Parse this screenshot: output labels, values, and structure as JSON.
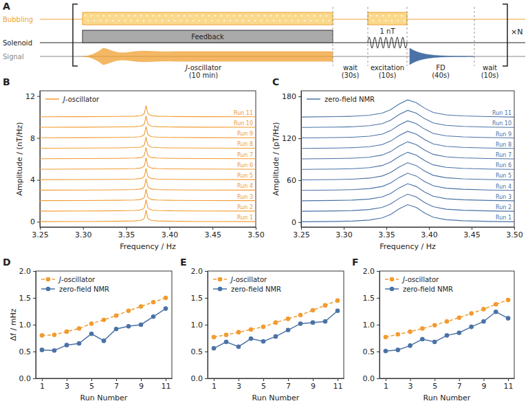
{
  "diagram": {
    "panel": "A",
    "rows": [
      "Bubbling",
      "Solenoid",
      "Signal"
    ],
    "feedback": "Feedback",
    "amplitude": "1 nT",
    "repeat": "×N",
    "phases": [
      {
        "name": "J-oscillator",
        "duration": "(10 min)"
      },
      {
        "name": "wait",
        "duration": "(30s)"
      },
      {
        "name": "excitation",
        "duration": "(10s)"
      },
      {
        "name": "FD",
        "duration": "(40s)"
      },
      {
        "name": "wait",
        "duration": "(10s)"
      }
    ]
  },
  "chart_data": [
    {
      "type": "line",
      "panel": "B",
      "xlabel": "Frequency / Hz",
      "ylabel": "Amplitude / (nT/Hz)",
      "legend_text": "J-oscillator",
      "legend": "upper left",
      "color": "#f29b30",
      "line_style": "solid",
      "marker": "none",
      "xlim": [
        3.25,
        3.5
      ],
      "ylim": [
        -0.5,
        12.5
      ],
      "xticks": [
        3.25,
        {
          "value": 3.3,
          "label": "3.30"
        },
        3.35,
        {
          "value": 3.4,
          "label": "3.40"
        },
        3.45,
        {
          "value": 3.5,
          "label": "3.50"
        }
      ],
      "yticks": [
        0,
        4,
        8,
        12
      ],
      "x": [
        3.25,
        3.3,
        3.34,
        3.36,
        3.366,
        3.369,
        3.371,
        3.372,
        3.373,
        3.374,
        3.375,
        3.377,
        3.38,
        3.386,
        3.4,
        3.44,
        3.5
      ],
      "series": [
        {
          "name": "Run 1",
          "values": [
            0.02,
            0.03,
            0.05,
            0.08,
            0.12,
            0.2,
            0.35,
            0.7,
            1.1,
            0.7,
            0.35,
            0.2,
            0.12,
            0.08,
            0.05,
            0.03,
            0.02
          ]
        },
        {
          "name": "Run 2",
          "values": [
            1.02,
            1.03,
            1.05,
            1.08,
            1.12,
            1.2,
            1.35,
            1.7,
            2.1,
            1.7,
            1.35,
            1.2,
            1.12,
            1.08,
            1.05,
            1.03,
            1.02
          ]
        },
        {
          "name": "Run 3",
          "values": [
            2.02,
            2.03,
            2.05,
            2.08,
            2.12,
            2.2,
            2.35,
            2.7,
            3.1,
            2.7,
            2.35,
            2.2,
            2.12,
            2.08,
            2.05,
            2.03,
            2.02
          ]
        },
        {
          "name": "Run 4",
          "values": [
            3.02,
            3.03,
            3.05,
            3.08,
            3.12,
            3.2,
            3.35,
            3.7,
            4.1,
            3.7,
            3.35,
            3.2,
            3.12,
            3.08,
            3.05,
            3.03,
            3.02
          ]
        },
        {
          "name": "Run 5",
          "values": [
            4.02,
            4.03,
            4.05,
            4.08,
            4.12,
            4.2,
            4.35,
            4.7,
            5.1,
            4.7,
            4.35,
            4.2,
            4.12,
            4.08,
            4.05,
            4.03,
            4.02
          ]
        },
        {
          "name": "Run 6",
          "values": [
            5.02,
            5.03,
            5.05,
            5.08,
            5.12,
            5.2,
            5.35,
            5.7,
            6.1,
            5.7,
            5.35,
            5.2,
            5.12,
            5.08,
            5.05,
            5.03,
            5.02
          ]
        },
        {
          "name": "Run 7",
          "values": [
            6.02,
            6.03,
            6.05,
            6.08,
            6.12,
            6.2,
            6.35,
            6.7,
            7.1,
            6.7,
            6.35,
            6.2,
            6.12,
            6.08,
            6.05,
            6.03,
            6.02
          ]
        },
        {
          "name": "Run 8",
          "values": [
            7.02,
            7.03,
            7.05,
            7.08,
            7.12,
            7.2,
            7.35,
            7.7,
            8.1,
            7.7,
            7.35,
            7.2,
            7.12,
            7.08,
            7.05,
            7.03,
            7.02
          ]
        },
        {
          "name": "Run 9",
          "values": [
            8.02,
            8.03,
            8.05,
            8.08,
            8.12,
            8.2,
            8.35,
            8.7,
            9.1,
            8.7,
            8.35,
            8.2,
            8.12,
            8.08,
            8.05,
            8.03,
            8.02
          ]
        },
        {
          "name": "Run 10",
          "values": [
            9.02,
            9.03,
            9.05,
            9.08,
            9.12,
            9.2,
            9.35,
            9.7,
            10.1,
            9.7,
            9.35,
            9.2,
            9.12,
            9.08,
            9.05,
            9.03,
            9.02
          ]
        },
        {
          "name": "Run 11",
          "values": [
            10.02,
            10.03,
            10.05,
            10.08,
            10.12,
            10.2,
            10.35,
            10.7,
            11.1,
            10.7,
            10.35,
            10.2,
            10.12,
            10.08,
            10.05,
            10.03,
            10.02
          ]
        }
      ]
    },
    {
      "type": "line",
      "panel": "C",
      "xlabel": "Frequency / Hz",
      "ylabel": "Amplitude / (pT/Hz)",
      "legend_text": "zero-field NMR",
      "legend": "upper left",
      "color": "#4a72a6",
      "line_style": "solid",
      "marker": "none",
      "xlim": [
        3.25,
        3.5
      ],
      "ylim": [
        -7,
        188
      ],
      "xticks": [
        3.25,
        {
          "value": 3.3,
          "label": "3.30"
        },
        3.35,
        {
          "value": 3.4,
          "label": "3.40"
        },
        3.45,
        {
          "value": 3.5,
          "label": "3.50"
        }
      ],
      "yticks": [
        0,
        60,
        120,
        180
      ],
      "x": [
        3.25,
        3.29,
        3.31,
        3.33,
        3.345,
        3.355,
        3.365,
        3.375,
        3.385,
        3.395,
        3.405,
        3.42,
        3.44,
        3.47,
        3.5
      ],
      "series": [
        {
          "name": "Run 1",
          "values": [
            0.5,
            1,
            1.5,
            3,
            6,
            11,
            19,
            25,
            21,
            13,
            7,
            3.5,
            2,
            1,
            0.5
          ]
        },
        {
          "name": "Run 2",
          "values": [
            15.5,
            16,
            16.5,
            18,
            21,
            26,
            34,
            40,
            36,
            28,
            22,
            18.5,
            17,
            16,
            15.5
          ]
        },
        {
          "name": "Run 3",
          "values": [
            30.5,
            31,
            31.5,
            33,
            36,
            41,
            49,
            55,
            51,
            43,
            37,
            33.5,
            32,
            31,
            30.5
          ]
        },
        {
          "name": "Run 4",
          "values": [
            45.5,
            46,
            46.5,
            48,
            51,
            56,
            64,
            70,
            66,
            58,
            52,
            48.5,
            47,
            46,
            45.5
          ]
        },
        {
          "name": "Run 5",
          "values": [
            60.5,
            61,
            61.5,
            63,
            66,
            71,
            79,
            85,
            81,
            73,
            67,
            63.5,
            62,
            61,
            60.5
          ]
        },
        {
          "name": "Run 6",
          "values": [
            75.5,
            76,
            76.5,
            78,
            81,
            86,
            94,
            100,
            96,
            88,
            82,
            78.5,
            77,
            76,
            75.5
          ]
        },
        {
          "name": "Run 7",
          "values": [
            90.5,
            91,
            91.5,
            93,
            96,
            101,
            109,
            115,
            111,
            103,
            97,
            93.5,
            92,
            91,
            90.5
          ]
        },
        {
          "name": "Run 8",
          "values": [
            105.5,
            106,
            106.5,
            108,
            111,
            116,
            124,
            130,
            126,
            118,
            112,
            108.5,
            107,
            106,
            105.5
          ]
        },
        {
          "name": "Run 9",
          "values": [
            120.5,
            121,
            121.5,
            123,
            126,
            131,
            139,
            145,
            141,
            133,
            127,
            123.5,
            122,
            121,
            120.5
          ]
        },
        {
          "name": "Run 10",
          "values": [
            135.5,
            136,
            136.5,
            138,
            141,
            146,
            154,
            160,
            156,
            148,
            142,
            138.5,
            137,
            136,
            135.5
          ]
        },
        {
          "name": "Run 11",
          "values": [
            150.5,
            151,
            151.5,
            153,
            156,
            161,
            169,
            175,
            171,
            163,
            157,
            153.5,
            152,
            151,
            150.5
          ]
        }
      ]
    },
    {
      "type": "line",
      "panel": "D",
      "xlabel": "Run Number",
      "ylabel": "Δf / mHz",
      "legend": "upper left",
      "xlim": [
        0.5,
        11.5
      ],
      "ylim": [
        0,
        2
      ],
      "xticks": [
        1,
        3,
        5,
        7,
        9,
        11
      ],
      "yticks": [
        {
          "value": 0,
          "label": "0.0"
        },
        0.5,
        {
          "value": 1,
          "label": "1.0"
        },
        1.5,
        {
          "value": 2,
          "label": "2.0"
        }
      ],
      "x": [
        1,
        2,
        3,
        4,
        5,
        6,
        7,
        8,
        9,
        10,
        11
      ],
      "series": [
        {
          "name": "J-oscillator",
          "color": "#f29b30",
          "line_style": "dashed",
          "marker": "circle",
          "values": [
            0.8,
            0.81,
            0.87,
            0.93,
            1.02,
            1.09,
            1.17,
            1.26,
            1.34,
            1.42,
            1.5
          ]
        },
        {
          "name": "zero-field NMR",
          "color": "#4a72a6",
          "line_style": "solid",
          "marker": "circle",
          "values": [
            0.53,
            0.52,
            0.62,
            0.65,
            0.83,
            0.7,
            0.92,
            0.97,
            1.0,
            1.15,
            1.3
          ]
        }
      ]
    },
    {
      "type": "line",
      "panel": "E",
      "xlabel": "Run Number",
      "legend": "upper left",
      "xlim": [
        0.5,
        11.5
      ],
      "ylim": [
        0,
        2
      ],
      "xticks": [
        1,
        3,
        5,
        7,
        9,
        11
      ],
      "yticks": [
        {
          "value": 0,
          "label": "0.0"
        },
        0.5,
        {
          "value": 1,
          "label": "1.0"
        },
        1.5,
        {
          "value": 2,
          "label": "2.0"
        }
      ],
      "x": [
        1,
        2,
        3,
        4,
        5,
        6,
        7,
        8,
        9,
        10,
        11
      ],
      "series": [
        {
          "name": "J-oscillator",
          "color": "#f29b30",
          "line_style": "dashed",
          "marker": "circle",
          "values": [
            0.77,
            0.81,
            0.86,
            0.91,
            0.96,
            1.04,
            1.11,
            1.18,
            1.27,
            1.36,
            1.45
          ]
        },
        {
          "name": "zero-field NMR",
          "color": "#4a72a6",
          "line_style": "solid",
          "marker": "circle",
          "values": [
            0.56,
            0.68,
            0.59,
            0.74,
            0.69,
            0.78,
            0.9,
            1.02,
            1.04,
            1.06,
            1.26
          ]
        }
      ]
    },
    {
      "type": "line",
      "panel": "F",
      "xlabel": "Run Number",
      "legend": "upper left",
      "xlim": [
        0.5,
        11.5
      ],
      "ylim": [
        0,
        2
      ],
      "xticks": [
        1,
        3,
        5,
        7,
        9,
        11
      ],
      "yticks": [
        {
          "value": 0,
          "label": "0.0"
        },
        0.5,
        {
          "value": 1,
          "label": "1.0"
        },
        1.5,
        {
          "value": 2,
          "label": "2.0"
        }
      ],
      "x": [
        1,
        2,
        3,
        4,
        5,
        6,
        7,
        8,
        9,
        10,
        11
      ],
      "series": [
        {
          "name": "J-oscillator",
          "color": "#f29b30",
          "line_style": "dashed",
          "marker": "circle",
          "values": [
            0.77,
            0.82,
            0.87,
            0.93,
            0.99,
            1.06,
            1.13,
            1.21,
            1.29,
            1.38,
            1.46
          ]
        },
        {
          "name": "zero-field NMR",
          "color": "#4a72a6",
          "line_style": "solid",
          "marker": "circle",
          "values": [
            0.51,
            0.53,
            0.61,
            0.73,
            0.68,
            0.8,
            0.85,
            0.96,
            1.06,
            1.24,
            1.12
          ]
        }
      ]
    }
  ]
}
